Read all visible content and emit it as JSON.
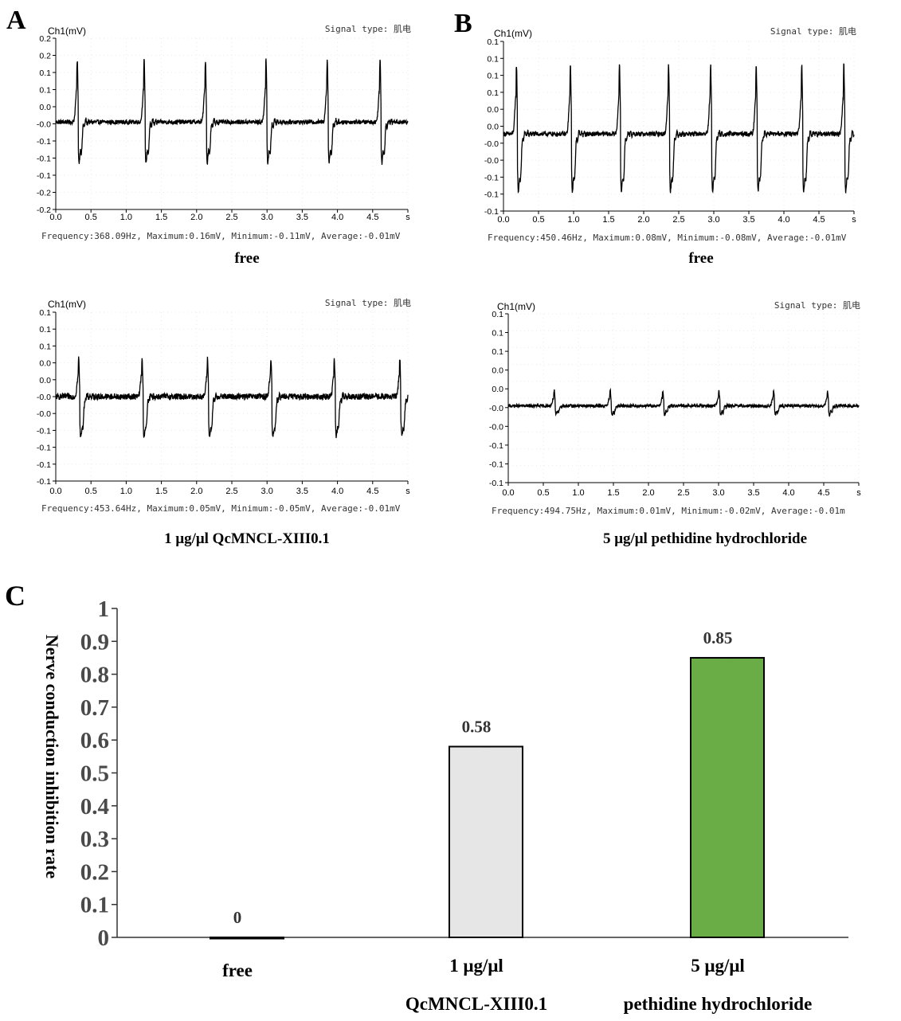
{
  "figure": {
    "panel_letters": {
      "a": "A",
      "b": "B",
      "c": "C"
    }
  },
  "chart_data": [
    {
      "type": "line",
      "id": "A1",
      "panel": "A",
      "ylabel": "Ch1(mV)",
      "signal_type": "Signal type: 肌电",
      "y_ticks": [
        "0.2",
        "0.2",
        "0.1",
        "0.1",
        "0.0",
        "-0.0",
        "-0.1",
        "-0.1",
        "-0.1",
        "-0.2",
        "-0.2"
      ],
      "x_ticks": [
        "0.0",
        "0.5",
        "1.0",
        "1.5",
        "2.0",
        "2.5",
        "3.0",
        "3.5",
        "4.0",
        "4.5",
        "s"
      ],
      "xlim": [
        0,
        5.0
      ],
      "ylim": [
        -0.25,
        0.22
      ],
      "spike_times": [
        0.3,
        1.25,
        2.12,
        2.98,
        3.85,
        4.6
      ],
      "spike_max": 0.16,
      "spike_min": -0.11,
      "baseline": -0.01,
      "noise": 0.006,
      "stats": "Frequency:368.09Hz, Maximum:0.16mV, Minimum:-0.11mV, Average:-0.01mV",
      "caption": "free"
    },
    {
      "type": "line",
      "id": "B1",
      "panel": "B",
      "ylabel": "Ch1(mV)",
      "signal_type": "Signal type: 肌电",
      "y_ticks": [
        "0.1",
        "0.1",
        "0.1",
        "0.1",
        "0.0",
        "0.0",
        "-0.0",
        "-0.0",
        "-0.1",
        "-0.1",
        "-0.1"
      ],
      "x_ticks": [
        "0.0",
        "0.5",
        "1.0",
        "1.5",
        "2.0",
        "2.5",
        "3.0",
        "3.5",
        "4.0",
        "4.5",
        "s"
      ],
      "xlim": [
        0,
        5.0
      ],
      "ylim": [
        -0.11,
        0.11
      ],
      "spike_times": [
        0.18,
        0.95,
        1.65,
        2.35,
        2.95,
        3.6,
        4.25,
        4.85
      ],
      "spike_max": 0.08,
      "spike_min": -0.08,
      "baseline": -0.01,
      "noise": 0.003,
      "stats": "Frequency:450.46Hz, Maximum:0.08mV, Minimum:-0.08mV, Average:-0.01mV",
      "caption": "free"
    },
    {
      "type": "line",
      "id": "A2",
      "panel": "A",
      "ylabel": "Ch1(mV)",
      "signal_type": "Signal type: 肌电",
      "y_ticks": [
        "0.1",
        "0.1",
        "0.1",
        "0.0",
        "0.0",
        "-0.0",
        "-0.0",
        "-0.1",
        "-0.1",
        "-0.1",
        "-0.1"
      ],
      "x_ticks": [
        "0.0",
        "0.5",
        "1.0",
        "1.5",
        "2.0",
        "2.5",
        "3.0",
        "3.5",
        "4.0",
        "4.5",
        "s"
      ],
      "xlim": [
        0,
        5.0
      ],
      "ylim": [
        -0.11,
        0.11
      ],
      "spike_times": [
        0.32,
        1.22,
        2.15,
        3.05,
        3.95,
        4.88
      ],
      "spike_max": 0.05,
      "spike_min": -0.05,
      "baseline": -0.0,
      "noise": 0.004,
      "stats": "Frequency:453.64Hz, Maximum:0.05mV, Minimum:-0.05mV, Average:-0.01mV",
      "caption": "1 μg/μl QcMNCL-XIII0.1"
    },
    {
      "type": "line",
      "id": "B2",
      "panel": "B",
      "ylabel": "Ch1(mV)",
      "signal_type": "Signal type: 肌电",
      "y_ticks": [
        "0.1",
        "0.1",
        "0.1",
        "0.0",
        "0.0",
        "-0.0",
        "-0.0",
        "-0.1",
        "-0.1",
        "-0.1"
      ],
      "x_ticks": [
        "0.0",
        "0.5",
        "1.0",
        "1.5",
        "2.0",
        "2.5",
        "3.0",
        "3.5",
        "4.0",
        "4.5",
        "s"
      ],
      "xlim": [
        0,
        5.0
      ],
      "ylim": [
        -0.11,
        0.11
      ],
      "spike_times": [
        0.65,
        1.45,
        2.2,
        3.0,
        3.78,
        4.55
      ],
      "spike_max": 0.01,
      "spike_min": -0.02,
      "baseline": -0.01,
      "noise": 0.002,
      "stats": "Frequency:494.75Hz, Maximum:0.01mV, Minimum:-0.02mV, Average:-0.01m",
      "caption": "5 μg/μl pethidine hydrochloride"
    },
    {
      "type": "bar",
      "id": "C",
      "panel": "C",
      "ylabel": "Nerve conduction inhibition rate",
      "ylim": [
        0,
        1
      ],
      "y_ticks": [
        "1",
        "0.9",
        "0.8",
        "0.7",
        "0.6",
        "0.5",
        "0.4",
        "0.3",
        "0.2",
        "0.1",
        "0"
      ],
      "categories": [
        {
          "line1": "free",
          "line2": ""
        },
        {
          "line1": "1 μg/μl",
          "line2": "QcMNCL-XIII0.1"
        },
        {
          "line1": "5 μg/μl",
          "line2": "pethidine hydrochloride"
        }
      ],
      "values": [
        0,
        0.58,
        0.85
      ],
      "value_labels": [
        "0",
        "0.58",
        "0.85"
      ],
      "colors": [
        "#ffffff",
        "#e6e6e6",
        "#6aac46"
      ]
    }
  ]
}
